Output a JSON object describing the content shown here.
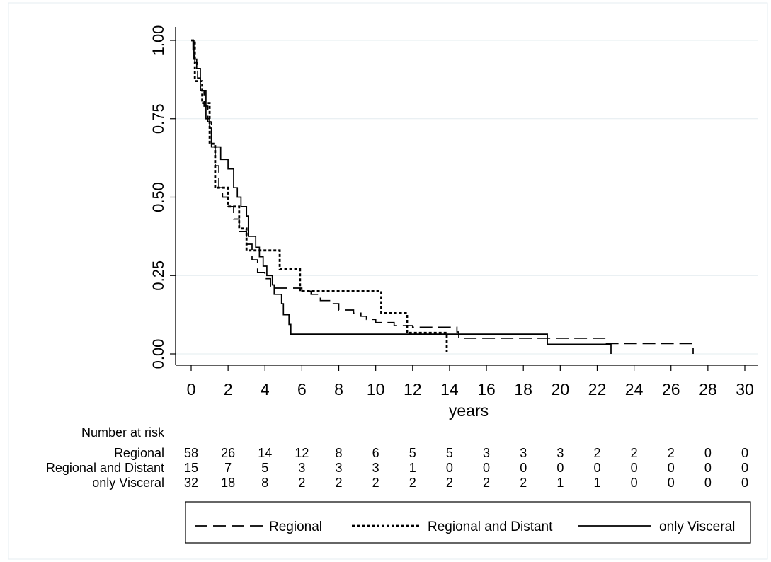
{
  "chart_data": {
    "type": "line",
    "step": true,
    "title": "",
    "xlabel": "years",
    "ylabel": "",
    "xlim": [
      0,
      30
    ],
    "ylim": [
      0,
      1
    ],
    "x_ticks": [
      0,
      2,
      4,
      6,
      8,
      10,
      12,
      14,
      16,
      18,
      20,
      22,
      24,
      26,
      28,
      30
    ],
    "y_ticks": [
      "0.00",
      "0.25",
      "0.50",
      "0.75",
      "1.00"
    ],
    "grid": "horizontal",
    "legend_position": "bottom",
    "series": [
      {
        "name": "Regional",
        "style": "long-dash",
        "points": [
          [
            0,
            1.0
          ],
          [
            0.1,
            0.97
          ],
          [
            0.2,
            0.93
          ],
          [
            0.35,
            0.88
          ],
          [
            0.5,
            0.84
          ],
          [
            0.7,
            0.79
          ],
          [
            0.9,
            0.74
          ],
          [
            1.1,
            0.66
          ],
          [
            1.3,
            0.6
          ],
          [
            1.5,
            0.53
          ],
          [
            1.7,
            0.5
          ],
          [
            2.0,
            0.47
          ],
          [
            2.3,
            0.43
          ],
          [
            2.6,
            0.39
          ],
          [
            3.0,
            0.35
          ],
          [
            3.3,
            0.3
          ],
          [
            3.6,
            0.26
          ],
          [
            4.0,
            0.24
          ],
          [
            4.3,
            0.21
          ],
          [
            5.5,
            0.21
          ],
          [
            6.0,
            0.2
          ],
          [
            6.5,
            0.19
          ],
          [
            7.0,
            0.17
          ],
          [
            7.5,
            0.16
          ],
          [
            8.0,
            0.14
          ],
          [
            8.8,
            0.13
          ],
          [
            9.2,
            0.12
          ],
          [
            9.5,
            0.11
          ],
          [
            10.0,
            0.1
          ],
          [
            11.0,
            0.09
          ],
          [
            12.0,
            0.085
          ],
          [
            13.0,
            0.085
          ],
          [
            14.4,
            0.07
          ],
          [
            14.5,
            0.05
          ],
          [
            20.0,
            0.05
          ],
          [
            22.5,
            0.033
          ],
          [
            27.0,
            0.033
          ],
          [
            27.2,
            0.0
          ]
        ]
      },
      {
        "name": "Regional and Distant",
        "style": "short-dash",
        "points": [
          [
            0,
            1.0
          ],
          [
            0.2,
            0.87
          ],
          [
            0.6,
            0.8
          ],
          [
            1.0,
            0.67
          ],
          [
            1.3,
            0.53
          ],
          [
            2.0,
            0.47
          ],
          [
            2.6,
            0.4
          ],
          [
            3.0,
            0.33
          ],
          [
            4.5,
            0.33
          ],
          [
            4.8,
            0.27
          ],
          [
            5.7,
            0.27
          ],
          [
            5.9,
            0.2
          ],
          [
            10.2,
            0.2
          ],
          [
            10.3,
            0.13
          ],
          [
            11.6,
            0.13
          ],
          [
            11.7,
            0.067
          ],
          [
            13.8,
            0.067
          ],
          [
            13.85,
            0.0
          ]
        ]
      },
      {
        "name": "only Visceral",
        "style": "solid",
        "points": [
          [
            0,
            1.0
          ],
          [
            0.15,
            0.94
          ],
          [
            0.3,
            0.91
          ],
          [
            0.5,
            0.84
          ],
          [
            0.8,
            0.75
          ],
          [
            1.0,
            0.72
          ],
          [
            1.1,
            0.66
          ],
          [
            1.5,
            0.66
          ],
          [
            1.6,
            0.62
          ],
          [
            2.0,
            0.59
          ],
          [
            2.3,
            0.53
          ],
          [
            2.5,
            0.5
          ],
          [
            2.7,
            0.47
          ],
          [
            3.0,
            0.44
          ],
          [
            3.1,
            0.375
          ],
          [
            3.5,
            0.34
          ],
          [
            3.7,
            0.31
          ],
          [
            3.9,
            0.28
          ],
          [
            4.1,
            0.25
          ],
          [
            4.4,
            0.22
          ],
          [
            4.5,
            0.19
          ],
          [
            4.9,
            0.16
          ],
          [
            5.0,
            0.125
          ],
          [
            5.3,
            0.094
          ],
          [
            5.4,
            0.063
          ],
          [
            19.2,
            0.063
          ],
          [
            19.3,
            0.031
          ],
          [
            22.7,
            0.031
          ],
          [
            22.75,
            0.0
          ]
        ]
      }
    ],
    "risk_table": {
      "title": "Number at risk",
      "times": [
        0,
        2,
        4,
        6,
        8,
        10,
        12,
        14,
        16,
        18,
        20,
        22,
        24,
        26,
        28,
        30
      ],
      "rows": [
        {
          "label": "Regional",
          "counts": [
            58,
            26,
            14,
            12,
            8,
            6,
            5,
            5,
            3,
            3,
            3,
            2,
            2,
            2,
            0,
            0
          ]
        },
        {
          "label": "Regional and Distant",
          "counts": [
            15,
            7,
            5,
            3,
            3,
            3,
            1,
            0,
            0,
            0,
            0,
            0,
            0,
            0,
            0,
            0
          ]
        },
        {
          "label": "only Visceral",
          "counts": [
            32,
            18,
            8,
            2,
            2,
            2,
            2,
            2,
            2,
            2,
            1,
            1,
            0,
            0,
            0,
            0
          ]
        }
      ]
    }
  }
}
